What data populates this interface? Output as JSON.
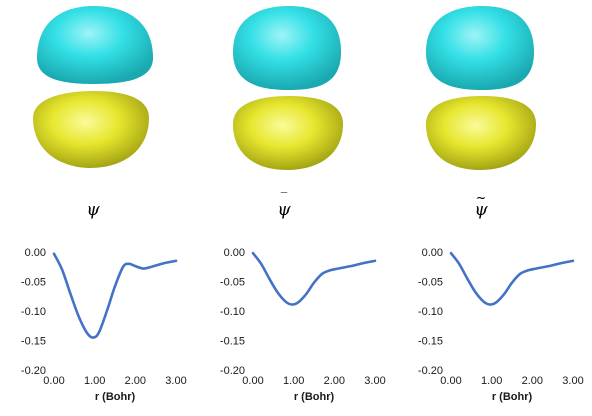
{
  "labels": [
    {
      "base": "ψ",
      "accent": ""
    },
    {
      "base": "ψ",
      "accent": "‾"
    },
    {
      "base": "ψ",
      "accent": "~"
    }
  ],
  "colors": {
    "lobe_top": "#33e0e6",
    "lobe_bottom": "#e6e62e",
    "line": "#4472c4",
    "axis_text": "#1a1a1a"
  },
  "chart_data": [
    {
      "type": "line",
      "xlabel": "r (Bohr)",
      "ylabel": "",
      "xlim": [
        0,
        3
      ],
      "ylim": [
        -0.2,
        0.0
      ],
      "xticks": [
        "0.00",
        "1.00",
        "2.00",
        "3.00"
      ],
      "yticks": [
        "0.00",
        "-0.05",
        "-0.10",
        "-0.15",
        "-0.20"
      ],
      "series": [
        {
          "x": [
            0.0,
            0.2,
            0.4,
            0.6,
            0.8,
            0.95,
            1.1,
            1.3,
            1.5,
            1.7,
            1.85,
            2.0,
            2.2,
            2.4,
            2.7,
            3.0
          ],
          "y": [
            -0.003,
            -0.03,
            -0.07,
            -0.108,
            -0.136,
            -0.145,
            -0.137,
            -0.1,
            -0.058,
            -0.025,
            -0.02,
            -0.024,
            -0.028,
            -0.025,
            -0.019,
            -0.015
          ]
        }
      ]
    },
    {
      "type": "line",
      "xlabel": "r (Bohr)",
      "ylabel": "",
      "xlim": [
        0,
        3
      ],
      "ylim": [
        -0.2,
        0.0
      ],
      "xticks": [
        "0.00",
        "1.00",
        "2.00",
        "3.00"
      ],
      "yticks": [
        "0.00",
        "-0.05",
        "-0.10",
        "-0.15",
        "-0.20"
      ],
      "series": [
        {
          "x": [
            0.0,
            0.2,
            0.4,
            0.6,
            0.8,
            0.95,
            1.1,
            1.3,
            1.5,
            1.7,
            1.9,
            2.1,
            2.4,
            2.7,
            3.0
          ],
          "y": [
            -0.002,
            -0.02,
            -0.045,
            -0.068,
            -0.084,
            -0.089,
            -0.086,
            -0.072,
            -0.052,
            -0.037,
            -0.031,
            -0.028,
            -0.024,
            -0.019,
            -0.015
          ]
        }
      ]
    },
    {
      "type": "line",
      "xlabel": "r (Bohr)",
      "ylabel": "",
      "xlim": [
        0,
        3
      ],
      "ylim": [
        -0.2,
        0.0
      ],
      "xticks": [
        "0.00",
        "1.00",
        "2.00",
        "3.00"
      ],
      "yticks": [
        "0.00",
        "-0.05",
        "-0.10",
        "-0.15",
        "-0.20"
      ],
      "series": [
        {
          "x": [
            0.0,
            0.2,
            0.4,
            0.6,
            0.8,
            0.95,
            1.1,
            1.3,
            1.5,
            1.7,
            1.9,
            2.1,
            2.4,
            2.7,
            3.0
          ],
          "y": [
            -0.002,
            -0.02,
            -0.045,
            -0.068,
            -0.084,
            -0.089,
            -0.086,
            -0.072,
            -0.052,
            -0.037,
            -0.031,
            -0.028,
            -0.024,
            -0.019,
            -0.015
          ]
        }
      ]
    }
  ]
}
